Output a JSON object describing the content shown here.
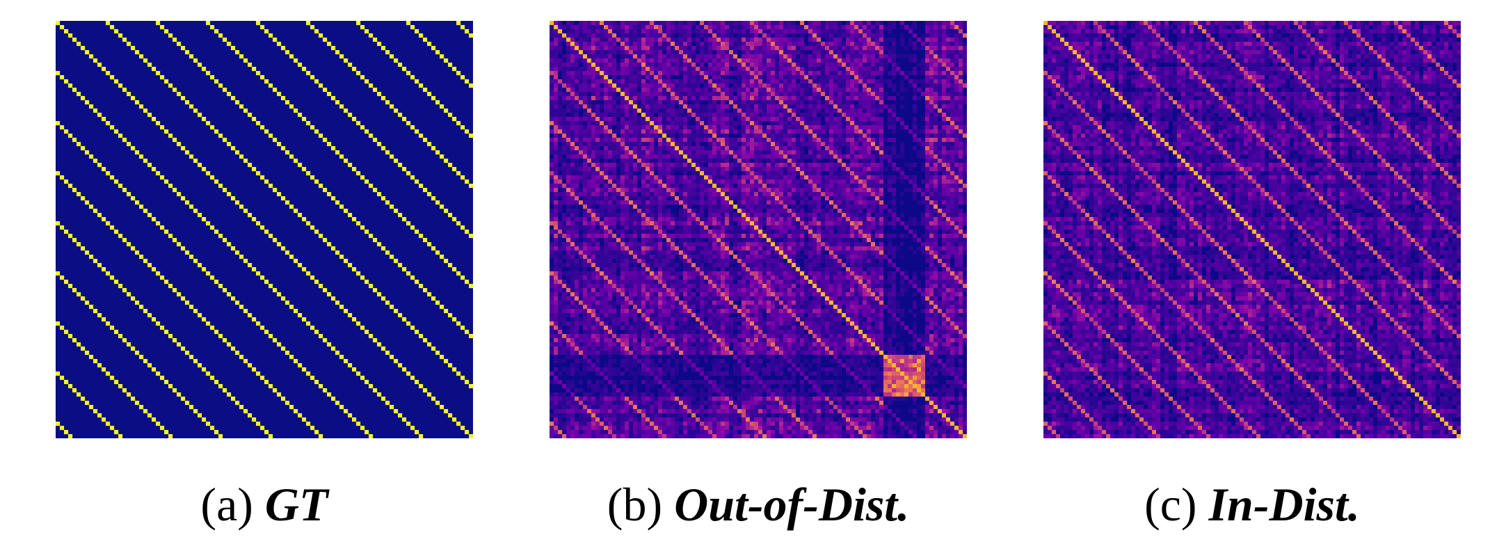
{
  "chart_data": [
    {
      "type": "heatmap",
      "panel_label": "(a)",
      "panel_name": "GT",
      "grid_size": 100,
      "diagonal_period": 12,
      "pattern": "periodic-diagonals",
      "colormap": "plasma",
      "background_color": "#0b0d85",
      "line_color": "#f0f921",
      "noise_level": 0.0,
      "grid": false,
      "legend": "none"
    },
    {
      "type": "heatmap",
      "panel_label": "(b)",
      "panel_name": "Out-of-Dist.",
      "grid_size": 100,
      "diagonal_period": 12,
      "pattern": "noisy-diagonals-with-hotspot",
      "colormap": "plasma",
      "background_color": "#0d0887",
      "line_color": "#f0f921",
      "noise_level": 0.35,
      "hotspot_block": [
        80,
        90
      ],
      "dark_band": [
        80,
        90
      ],
      "grid": false,
      "legend": "none"
    },
    {
      "type": "heatmap",
      "panel_label": "(c)",
      "panel_name": "In-Dist.",
      "grid_size": 100,
      "diagonal_period": 12,
      "pattern": "periodic-diagonals-with-noise",
      "colormap": "plasma",
      "background_color": "#0d0887",
      "line_color": "#f0f921",
      "noise_level": 0.28,
      "grid": false,
      "legend": "none"
    }
  ]
}
